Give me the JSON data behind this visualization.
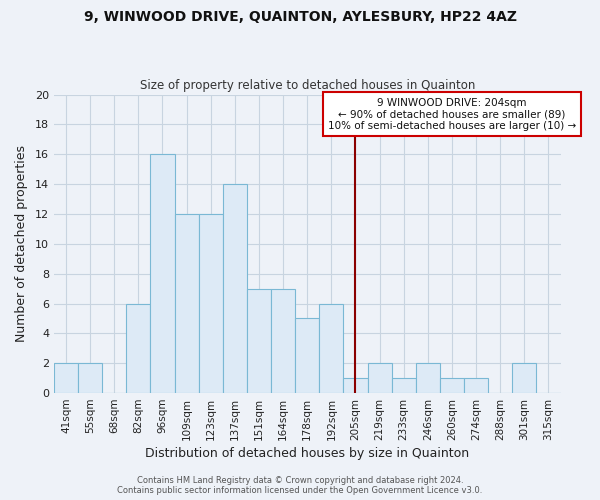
{
  "title": "9, WINWOOD DRIVE, QUAINTON, AYLESBURY, HP22 4AZ",
  "subtitle": "Size of property relative to detached houses in Quainton",
  "xlabel": "Distribution of detached houses by size in Quainton",
  "ylabel": "Number of detached properties",
  "bin_labels": [
    "41sqm",
    "55sqm",
    "68sqm",
    "82sqm",
    "96sqm",
    "109sqm",
    "123sqm",
    "137sqm",
    "151sqm",
    "164sqm",
    "178sqm",
    "192sqm",
    "205sqm",
    "219sqm",
    "233sqm",
    "246sqm",
    "260sqm",
    "274sqm",
    "288sqm",
    "301sqm",
    "315sqm"
  ],
  "bar_heights": [
    2,
    2,
    0,
    6,
    16,
    12,
    12,
    14,
    7,
    7,
    5,
    6,
    1,
    2,
    1,
    2,
    1,
    1,
    0,
    2,
    0
  ],
  "bar_color": "#ddeaf6",
  "bar_edge_color": "#7ab8d4",
  "vline_x_index": 12,
  "vline_color": "#8b0000",
  "ylim": [
    0,
    20
  ],
  "yticks": [
    0,
    2,
    4,
    6,
    8,
    10,
    12,
    14,
    16,
    18,
    20
  ],
  "annotation_line1": "9 WINWOOD DRIVE: 204sqm",
  "annotation_line2": "← 90% of detached houses are smaller (89)",
  "annotation_line3": "10% of semi-detached houses are larger (10) →",
  "annotation_box_color": "#ffffff",
  "annotation_box_edge": "#cc0000",
  "footer_line1": "Contains HM Land Registry data © Crown copyright and database right 2024.",
  "footer_line2": "Contains public sector information licensed under the Open Government Licence v3.0.",
  "grid_color": "#c8d4e0",
  "background_color": "#eef2f8",
  "plot_bg_color": "#eef2f8"
}
